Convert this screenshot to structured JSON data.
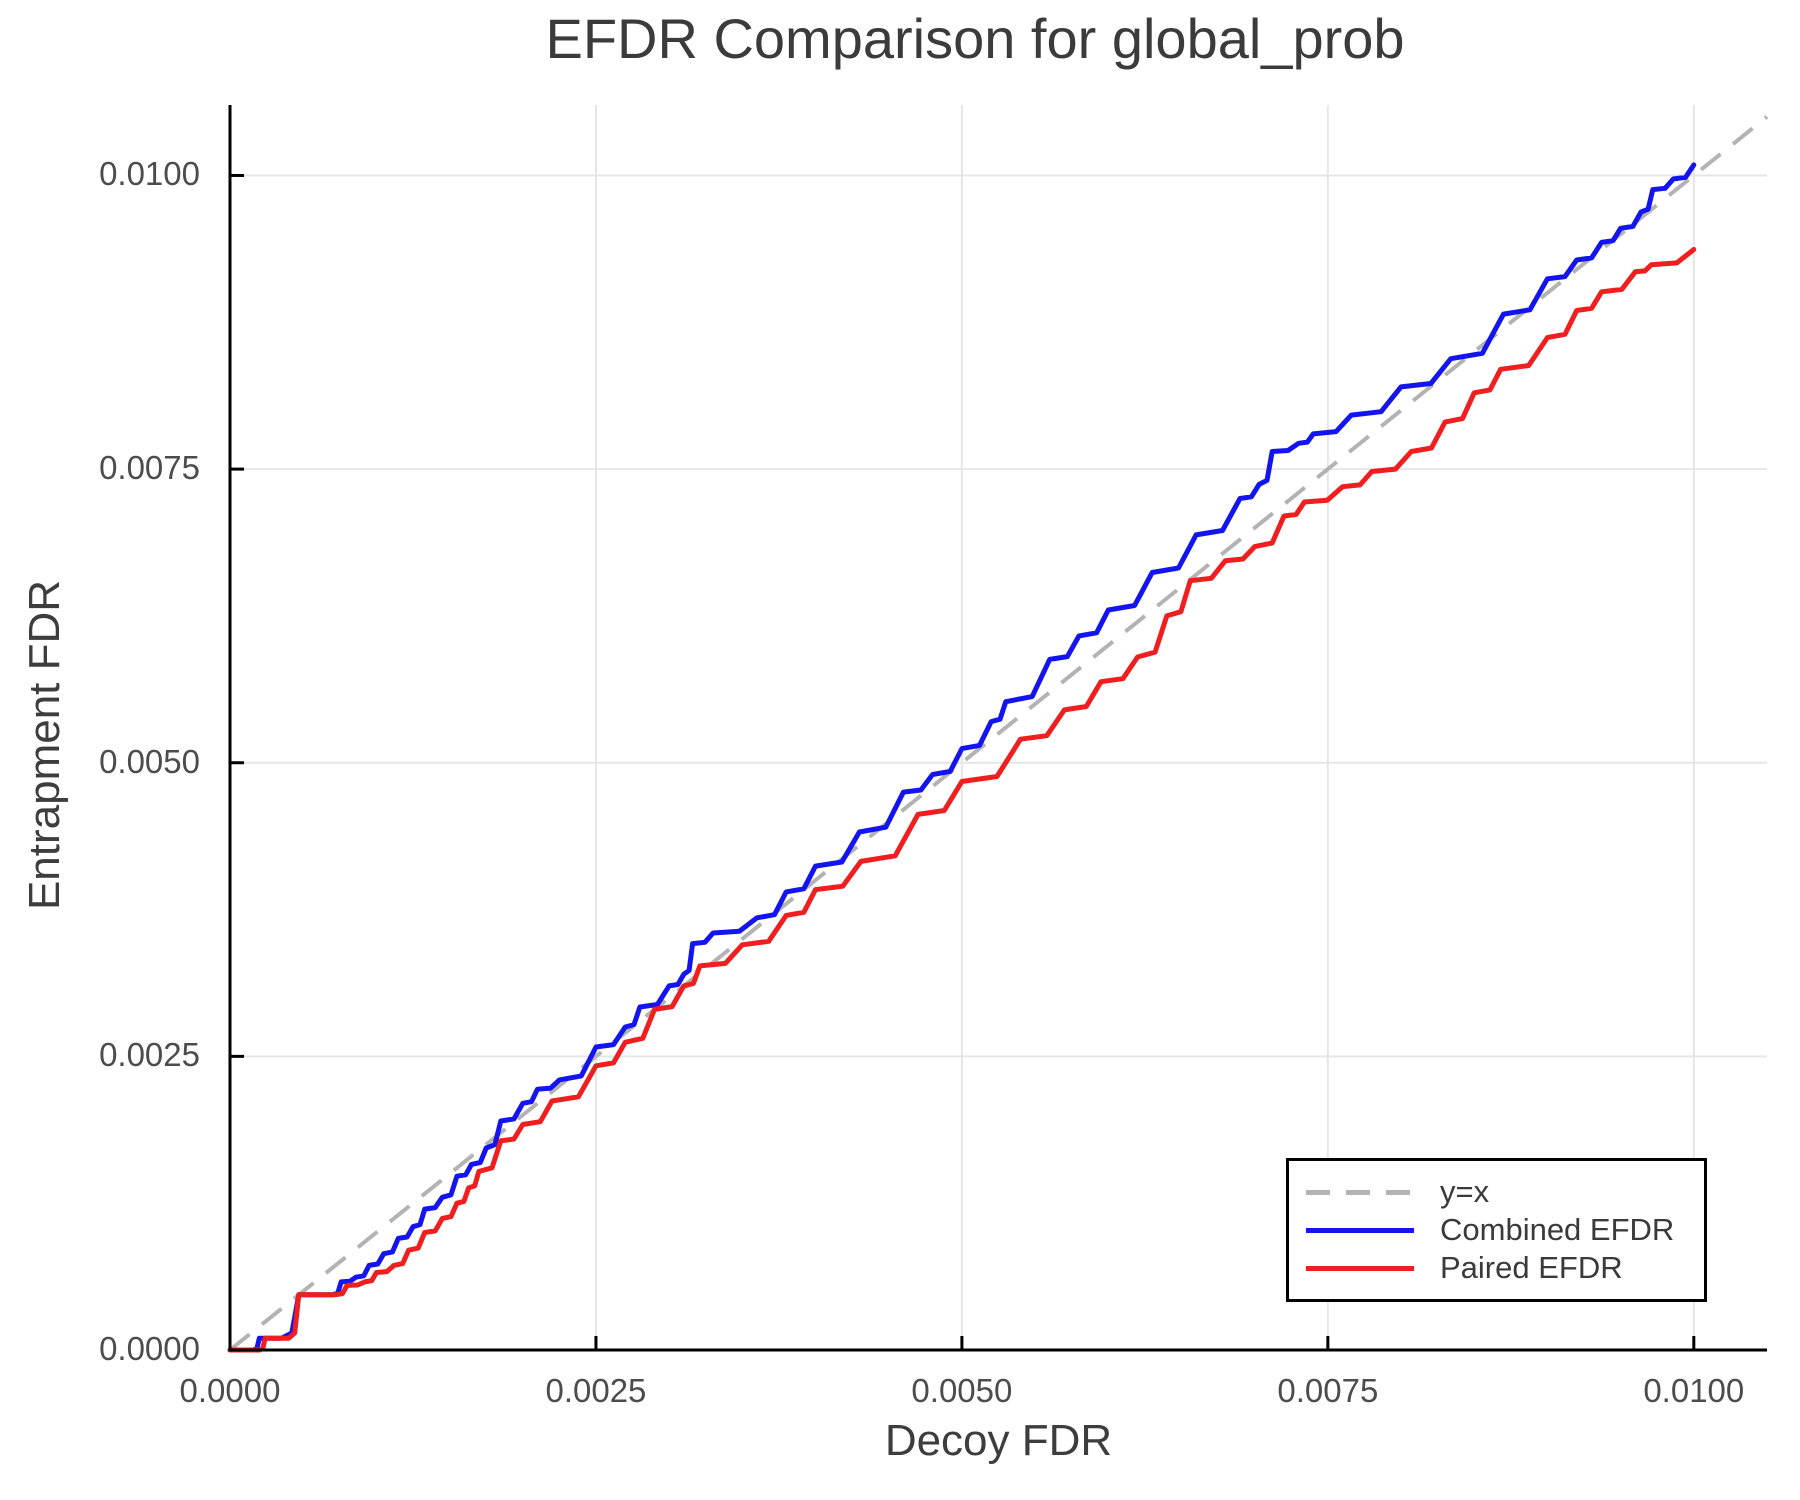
{
  "chart_data": {
    "type": "line",
    "title": "EFDR Comparison for global_prob",
    "xlabel": "Decoy FDR",
    "ylabel": "Entrapment FDR",
    "xlim": [
      0,
      0.0105
    ],
    "ylim": [
      0,
      0.0106
    ],
    "grid": true,
    "grid_color": "#e6e6e6",
    "axis_color": "#000000",
    "legend_position": "bottom-right",
    "x_ticks": [
      0,
      0.0025,
      0.005,
      0.0075,
      0.01
    ],
    "y_ticks": [
      0,
      0.0025,
      0.005,
      0.0075,
      0.01
    ],
    "x_tick_labels": [
      "0.0000",
      "0.0025",
      "0.0050",
      "0.0075",
      "0.0100"
    ],
    "y_tick_labels": [
      "0.0000",
      "0.0025",
      "0.0050",
      "0.0075",
      "0.0100"
    ],
    "reference_line": {
      "name": "y=x",
      "from": [
        0,
        0
      ],
      "to": [
        0.0105,
        0.0105
      ],
      "color": "#b3b3b3",
      "dashed": true
    },
    "series": [
      {
        "name": "Combined EFDR",
        "color": "#1414f0",
        "points": [
          [
            0.0,
            0.0
          ],
          [
            0.00016,
            0.0
          ],
          [
            0.0002,
            0.0001
          ],
          [
            0.00035,
            0.0001
          ],
          [
            0.00047,
            0.00047
          ],
          [
            0.0007,
            0.00047
          ],
          [
            0.00076,
            0.00058
          ],
          [
            0.00086,
            0.00062
          ],
          [
            0.00095,
            0.00072
          ],
          [
            0.00105,
            0.00082
          ],
          [
            0.00115,
            0.00095
          ],
          [
            0.00125,
            0.00105
          ],
          [
            0.00133,
            0.0012
          ],
          [
            0.00145,
            0.0013
          ],
          [
            0.00155,
            0.00148
          ],
          [
            0.00165,
            0.00158
          ],
          [
            0.00175,
            0.00172
          ],
          [
            0.00185,
            0.00195
          ],
          [
            0.002,
            0.0021
          ],
          [
            0.0021,
            0.00222
          ],
          [
            0.00225,
            0.0023
          ],
          [
            0.0025,
            0.00258
          ],
          [
            0.0027,
            0.00275
          ],
          [
            0.0028,
            0.00292
          ],
          [
            0.003,
            0.0031
          ],
          [
            0.0031,
            0.0032
          ],
          [
            0.00316,
            0.00346
          ],
          [
            0.0033,
            0.00355
          ],
          [
            0.0036,
            0.00368
          ],
          [
            0.0038,
            0.0039
          ],
          [
            0.004,
            0.00412
          ],
          [
            0.0043,
            0.00441
          ],
          [
            0.0046,
            0.00475
          ],
          [
            0.0048,
            0.0049
          ],
          [
            0.005,
            0.00512
          ],
          [
            0.0052,
            0.00535
          ],
          [
            0.0053,
            0.00552
          ],
          [
            0.0056,
            0.00588
          ],
          [
            0.0058,
            0.00608
          ],
          [
            0.006,
            0.0063
          ],
          [
            0.0063,
            0.00662
          ],
          [
            0.0066,
            0.00694
          ],
          [
            0.0069,
            0.00725
          ],
          [
            0.00703,
            0.00737
          ],
          [
            0.00712,
            0.00765
          ],
          [
            0.0073,
            0.00772
          ],
          [
            0.0074,
            0.0078
          ],
          [
            0.00766,
            0.00796
          ],
          [
            0.008,
            0.0082
          ],
          [
            0.00834,
            0.00844
          ],
          [
            0.0087,
            0.00882
          ],
          [
            0.009,
            0.00912
          ],
          [
            0.0092,
            0.00928
          ],
          [
            0.00937,
            0.00943
          ],
          [
            0.0095,
            0.00955
          ],
          [
            0.00964,
            0.00969
          ],
          [
            0.00972,
            0.00988
          ],
          [
            0.00986,
            0.00997
          ],
          [
            0.01,
            0.01009
          ]
        ]
      },
      {
        "name": "Paired EFDR",
        "color": "#f01e1e",
        "points": [
          [
            0.0,
            0.0
          ],
          [
            0.0002,
            0.0
          ],
          [
            0.00024,
            0.0001
          ],
          [
            0.0004,
            0.0001
          ],
          [
            0.00047,
            0.00047
          ],
          [
            0.00072,
            0.00047
          ],
          [
            0.0008,
            0.00055
          ],
          [
            0.00092,
            0.00058
          ],
          [
            0.001,
            0.00066
          ],
          [
            0.00112,
            0.00072
          ],
          [
            0.00122,
            0.00085
          ],
          [
            0.00133,
            0.001
          ],
          [
            0.00145,
            0.00112
          ],
          [
            0.00155,
            0.00125
          ],
          [
            0.00163,
            0.00138
          ],
          [
            0.0017,
            0.00152
          ],
          [
            0.00185,
            0.00178
          ],
          [
            0.002,
            0.00192
          ],
          [
            0.0022,
            0.00212
          ],
          [
            0.0025,
            0.00242
          ],
          [
            0.0027,
            0.00262
          ],
          [
            0.0029,
            0.0029
          ],
          [
            0.0031,
            0.0031
          ],
          [
            0.00321,
            0.00327
          ],
          [
            0.0035,
            0.00345
          ],
          [
            0.0038,
            0.0037
          ],
          [
            0.004,
            0.00392
          ],
          [
            0.00431,
            0.00416
          ],
          [
            0.0047,
            0.00456
          ],
          [
            0.005,
            0.00484
          ],
          [
            0.0054,
            0.0052
          ],
          [
            0.0057,
            0.00545
          ],
          [
            0.00595,
            0.00569
          ],
          [
            0.0062,
            0.0059
          ],
          [
            0.0064,
            0.00625
          ],
          [
            0.00656,
            0.00655
          ],
          [
            0.0068,
            0.00672
          ],
          [
            0.007,
            0.00684
          ],
          [
            0.0072,
            0.0071
          ],
          [
            0.00734,
            0.00722
          ],
          [
            0.0076,
            0.00735
          ],
          [
            0.0078,
            0.00748
          ],
          [
            0.00807,
            0.00765
          ],
          [
            0.0083,
            0.0079
          ],
          [
            0.0085,
            0.00815
          ],
          [
            0.00868,
            0.00835
          ],
          [
            0.009,
            0.00862
          ],
          [
            0.0092,
            0.00885
          ],
          [
            0.00937,
            0.00901
          ],
          [
            0.0096,
            0.00918
          ],
          [
            0.00971,
            0.00924
          ],
          [
            0.01,
            0.00937
          ]
        ]
      }
    ]
  }
}
